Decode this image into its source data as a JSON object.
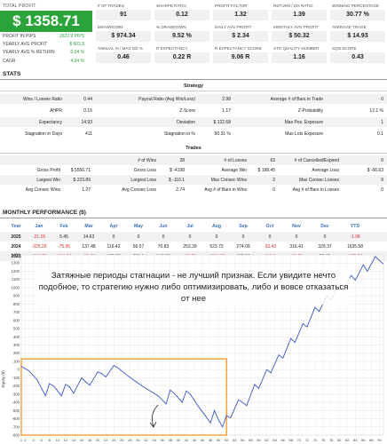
{
  "profit": {
    "total_label": "TOTAL PROFIT",
    "total_value": "$ 1358.71",
    "rows": [
      {
        "label": "PROFIT IN PIPS",
        "value": "2622.9 PIPS"
      },
      {
        "label": "YEARLY AVG PROFIT",
        "value": "$ 603.8"
      },
      {
        "label": "YEARLY AVG % RETURN",
        "value": "6.04 %"
      },
      {
        "label": "CAGR",
        "value": "4.34 %"
      }
    ]
  },
  "metrics": [
    {
      "label": "# OF TRADES",
      "value": "91"
    },
    {
      "label": "SHARPE RATIO",
      "value": "0.12"
    },
    {
      "label": "PROFIT FACTOR",
      "value": "1.32"
    },
    {
      "label": "RETURN / DD RATIO",
      "value": "1.39"
    },
    {
      "label": "WINNING PERCENTAGE",
      "value": "30.77 %"
    },
    {
      "label": "DRAWDOWN",
      "value": "$ 974.34"
    },
    {
      "label": "% DRAWDOWN",
      "value": "9.52 %"
    },
    {
      "label": "DAILY AVG PROFIT",
      "value": "$ 2.34"
    },
    {
      "label": "MONTHLY AVG PROFIT",
      "value": "$ 50.32"
    },
    {
      "label": "AVERAGE TRADE",
      "value": "$ 14.93"
    },
    {
      "label": "ANNUAL % / MAX DD %",
      "value": "0.46"
    },
    {
      "label": "R EXPECTANCY",
      "value": "0.22 R"
    },
    {
      "label": "R EXPECTANCY SCORE",
      "value": "9.06 R"
    },
    {
      "label": "STR QUALITY NUMBER",
      "value": "1.16"
    },
    {
      "label": "SQN SCORE",
      "value": "0.43"
    }
  ],
  "stats": {
    "title": "STATS",
    "strategy": {
      "title": "Strategy",
      "rows": [
        [
          "Wins / Losses Ratio",
          "0.44",
          "Payout Ratio (Avg Win/Loss)",
          "2.98",
          "Average # of Bars in Trade",
          "0"
        ],
        [
          "AHPR",
          "0.15",
          "Z-Score",
          "1.17",
          "Z-Probability",
          "12.1 %"
        ],
        [
          "Expectancy",
          "14.93",
          "Deviation",
          "$ 122.68",
          "Max Pos. Exposure",
          "1"
        ],
        [
          "Stagnation in Days",
          "411",
          "Stagnation in %",
          "50.31 %",
          "Max Lots Exposure",
          "0.1"
        ]
      ]
    },
    "trades": {
      "title": "Trades",
      "rows": [
        [
          "",
          "",
          "# of Wins",
          "28",
          "# of Losses",
          "63",
          "# of Cancelled/Expired",
          "0"
        ],
        [
          "Gross Profit",
          "$ 5556.71",
          "Gross Loss",
          "$ -4198",
          "Average Win",
          "$ 198.45",
          "Average Loss",
          "$ -66.63"
        ],
        [
          "Largest Win",
          "$ 223.89",
          "Largest Loss",
          "$ -110.1",
          "Max Consec Wins",
          "2",
          "Max Consec Losses",
          "9"
        ],
        [
          "Avg Consec Wins",
          "1.27",
          "Avg Consec Loss",
          "2.74",
          "Avg # of Bars in Wins",
          "0",
          "Avg # of Bars in Losses",
          "0"
        ]
      ]
    }
  },
  "monthly": {
    "title": "MONTHLY PERFORMANCE ($)",
    "headers": [
      "Year",
      "Jan",
      "Feb",
      "Mar",
      "Apr",
      "May",
      "Jun",
      "Jul",
      "Aug",
      "Sep",
      "Oct",
      "Nov",
      "Dec",
      "YTD"
    ],
    "rows": [
      [
        "2025",
        "-21.16",
        "5.45",
        "14.63",
        "0",
        "0",
        "0",
        "0",
        "0",
        "0",
        "0",
        "0",
        "0",
        "-1.08"
      ],
      [
        "2024",
        "-325.28",
        "-75.95",
        "137.48",
        "116.42",
        "66.57",
        "70.83",
        "253.39",
        "523.72",
        "274.09",
        "-33.43",
        "316.41",
        "329.37",
        "1635.58"
      ],
      [
        "2023",
        "-216.77",
        "-216.59",
        "-63.82",
        "155.95",
        "229.1",
        "143.52",
        "-69.23",
        "-286.17",
        "137.93",
        "-110.1",
        "-61.89",
        "72.95",
        "-275.79"
      ]
    ]
  },
  "chart_data": {
    "type": "line",
    "title": "",
    "xlabel": "",
    "ylabel": "Equity ($)",
    "ylim": [
      -800,
      1400
    ],
    "y_ticks": [
      -800,
      -700,
      -600,
      -500,
      -400,
      -300,
      -200,
      -100,
      0,
      100,
      200,
      300,
      400,
      500,
      600,
      700,
      800,
      900,
      1000,
      1100,
      1200,
      1300,
      1400
    ],
    "xlim": [
      1,
      91
    ],
    "x_ticks": [
      1,
      2,
      4,
      6,
      8,
      10,
      12,
      14,
      16,
      18,
      20,
      22,
      24,
      26,
      28,
      30,
      32,
      34,
      36,
      38,
      40,
      42,
      44,
      46,
      48,
      50,
      52,
      54,
      56,
      58,
      60,
      62,
      64,
      66,
      68,
      70,
      72,
      74,
      76,
      78,
      80,
      82,
      84,
      86,
      88,
      90
    ],
    "grid": true,
    "color": "#3a55c8",
    "highlight_color": "#f0a030",
    "highlight": {
      "x_start": 1,
      "x_end": 52,
      "y_start": -800,
      "y_end": 130
    },
    "points": [
      [
        1,
        40
      ],
      [
        3,
        -20
      ],
      [
        5,
        -130
      ],
      [
        7,
        -320
      ],
      [
        8,
        -170
      ],
      [
        9,
        -200
      ],
      [
        11,
        -320
      ],
      [
        12,
        -180
      ],
      [
        13,
        -210
      ],
      [
        14,
        -290
      ],
      [
        16,
        -100
      ],
      [
        17,
        -150
      ],
      [
        18,
        -190
      ],
      [
        20,
        -30
      ],
      [
        21,
        -50
      ],
      [
        22,
        -90
      ],
      [
        24,
        50
      ],
      [
        25,
        20
      ],
      [
        27,
        -60
      ],
      [
        29,
        -130
      ],
      [
        31,
        -200
      ],
      [
        33,
        -260
      ],
      [
        35,
        -320
      ],
      [
        37,
        -420
      ],
      [
        38,
        -250
      ],
      [
        39,
        -290
      ],
      [
        41,
        -400
      ],
      [
        42,
        -260
      ],
      [
        43,
        -300
      ],
      [
        45,
        -450
      ],
      [
        47,
        -580
      ],
      [
        48,
        -650
      ],
      [
        49,
        -500
      ],
      [
        50,
        -610
      ],
      [
        51,
        -700
      ],
      [
        52,
        -560
      ],
      [
        53,
        -590
      ],
      [
        55,
        -370
      ],
      [
        56,
        -400
      ],
      [
        57,
        -440
      ],
      [
        59,
        -180
      ],
      [
        60,
        -230
      ],
      [
        62,
        0
      ],
      [
        63,
        -40
      ],
      [
        65,
        180
      ],
      [
        66,
        140
      ],
      [
        68,
        380
      ],
      [
        69,
        330
      ],
      [
        71,
        560
      ],
      [
        72,
        520
      ],
      [
        74,
        760
      ],
      [
        75,
        710
      ],
      [
        77,
        900
      ],
      [
        78,
        850
      ],
      [
        80,
        1030
      ],
      [
        81,
        980
      ],
      [
        83,
        1150
      ],
      [
        84,
        1090
      ],
      [
        86,
        1280
      ],
      [
        87,
        1200
      ],
      [
        89,
        1380
      ],
      [
        90,
        1330
      ],
      [
        91,
        1290
      ]
    ],
    "annotation": "Затяжные периоды стагнации - не лучший признак. Если увидите нечто подобное, то стратегию нужно либо оптимизировать, либо и вовсе отказаться от нее"
  }
}
